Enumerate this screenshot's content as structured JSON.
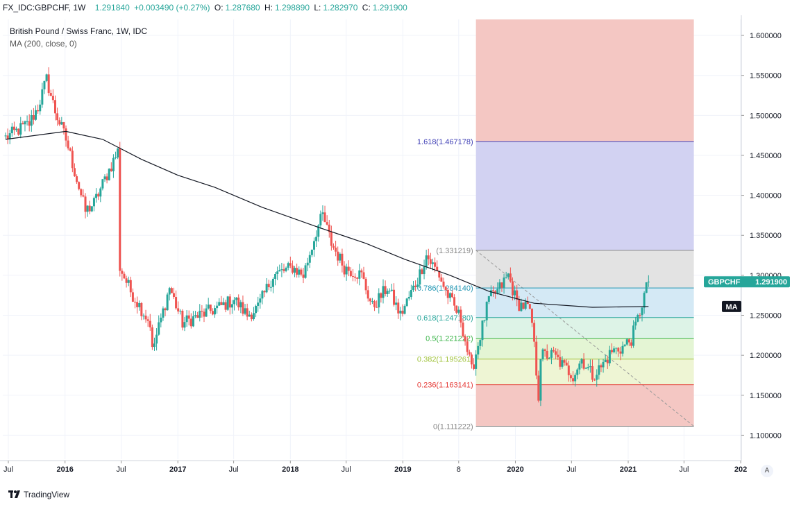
{
  "header": {
    "symbol": "FX_IDC:GBPCHF, 1W",
    "last": "1.291840",
    "change": "+0.003490 (+0.27%)",
    "o_label": "O:",
    "o_value": "1.287680",
    "h_label": "H:",
    "h_value": "1.298890",
    "l_label": "L:",
    "l_value": "1.282970",
    "c_label": "C:",
    "c_value": "1.291900"
  },
  "legend": {
    "title": "British Pound / Swiss Franc, 1W, IDC",
    "ma": "MA (200, close, 0)"
  },
  "footer": {
    "brand": "TradingView",
    "auto_label": "A"
  },
  "colors": {
    "up": "#26a69a",
    "down": "#ef5350",
    "ma": "#131722",
    "fib_top_zone": "#f4c7c3",
    "fib_1618_zone": "#d2d2f2",
    "fib_1_zone": "#e3e3e3",
    "fib_786_zone": "#d4e9f5",
    "fib_618_zone": "#ddf3e7",
    "fib_05_zone": "#e4f5d4",
    "fib_382_zone": "#eef5d4",
    "fib_0_zone": "#f4c7c3"
  },
  "chart_data": {
    "type": "candlestick",
    "title": "British Pound / Swiss Franc, 1W, IDC",
    "indicator": "MA (200, close, 0)",
    "ylim": [
      1.07,
      1.62
    ],
    "y_ticks": [
      "1.600000",
      "1.550000",
      "1.500000",
      "1.450000",
      "1.400000",
      "1.350000",
      "1.300000",
      "1.250000",
      "1.200000",
      "1.150000",
      "1.100000"
    ],
    "x_ticks": [
      "Jul",
      "2016",
      "Jul",
      "2017",
      "Jul",
      "2018",
      "Jul",
      "2019",
      "8",
      "2020",
      "Jul",
      "2021",
      "Jul",
      "202"
    ],
    "price_label": {
      "symbol": "GBPCHF",
      "value": "1.291900"
    },
    "ma_label": "MA",
    "fib_levels": [
      {
        "label": "1.618(1.467178)",
        "value": 1.467178,
        "color": "#3f3fb5"
      },
      {
        "label": "(1.331219)",
        "value": 1.331219,
        "color": "#888888"
      },
      {
        "label": "0.786(1.284140)",
        "value": 1.28414,
        "color": "#2196b3"
      },
      {
        "label": "0.618(1.247180)",
        "value": 1.24718,
        "color": "#26a69a"
      },
      {
        "label": "0.5(1.221222)",
        "value": 1.221222,
        "color": "#3cb54a"
      },
      {
        "label": "0.382(1.195261)",
        "value": 1.195261,
        "color": "#9fc23a"
      },
      {
        "label": "0.236(1.163141)",
        "value": 1.163141,
        "color": "#e53935"
      },
      {
        "label": "0(1.111222)",
        "value": 1.111222,
        "color": "#888888"
      }
    ],
    "anchors": [
      {
        "date": "2015-06-22",
        "close": 1.472
      },
      {
        "date": "2015-09-07",
        "close": 1.49
      },
      {
        "date": "2015-10-05",
        "close": 1.51
      },
      {
        "date": "2015-11-02",
        "close": 1.545
      },
      {
        "date": "2015-11-30",
        "close": 1.505
      },
      {
        "date": "2016-01-04",
        "close": 1.47
      },
      {
        "date": "2016-02-01",
        "close": 1.43
      },
      {
        "date": "2016-03-07",
        "close": 1.38
      },
      {
        "date": "2016-04-04",
        "close": 1.39
      },
      {
        "date": "2016-05-09",
        "close": 1.42
      },
      {
        "date": "2016-06-20",
        "close": 1.455
      },
      {
        "date": "2016-06-27",
        "close": 1.31
      },
      {
        "date": "2016-08-01",
        "close": 1.28
      },
      {
        "date": "2016-10-03",
        "close": 1.24
      },
      {
        "date": "2016-10-10",
        "close": 1.205
      },
      {
        "date": "2016-11-07",
        "close": 1.245
      },
      {
        "date": "2016-12-05",
        "close": 1.285
      },
      {
        "date": "2017-01-16",
        "close": 1.24
      },
      {
        "date": "2017-03-13",
        "close": 1.25
      },
      {
        "date": "2017-05-15",
        "close": 1.26
      },
      {
        "date": "2017-07-03",
        "close": 1.27
      },
      {
        "date": "2017-08-14",
        "close": 1.25
      },
      {
        "date": "2017-09-18",
        "close": 1.26
      },
      {
        "date": "2017-11-06",
        "close": 1.3
      },
      {
        "date": "2018-01-08",
        "close": 1.31
      },
      {
        "date": "2018-02-12",
        "close": 1.3
      },
      {
        "date": "2018-03-26",
        "close": 1.355
      },
      {
        "date": "2018-04-16",
        "close": 1.375
      },
      {
        "date": "2018-05-14",
        "close": 1.34
      },
      {
        "date": "2018-06-25",
        "close": 1.31
      },
      {
        "date": "2018-08-20",
        "close": 1.3
      },
      {
        "date": "2018-09-24",
        "close": 1.26
      },
      {
        "date": "2018-11-12",
        "close": 1.285
      },
      {
        "date": "2018-12-24",
        "close": 1.25
      },
      {
        "date": "2019-02-18",
        "close": 1.295
      },
      {
        "date": "2019-03-18",
        "close": 1.325
      },
      {
        "date": "2019-04-29",
        "close": 1.3
      },
      {
        "date": "2019-05-20",
        "close": 1.28
      },
      {
        "date": "2019-07-08",
        "close": 1.245
      },
      {
        "date": "2019-08-12",
        "close": 1.18
      },
      {
        "date": "2019-09-09",
        "close": 1.225
      },
      {
        "date": "2019-10-07",
        "close": 1.27
      },
      {
        "date": "2019-11-04",
        "close": 1.28
      },
      {
        "date": "2019-12-09",
        "close": 1.3
      },
      {
        "date": "2020-01-06",
        "close": 1.265
      },
      {
        "date": "2020-02-10",
        "close": 1.26
      },
      {
        "date": "2020-02-24",
        "close": 1.24
      },
      {
        "date": "2020-03-16",
        "close": 1.15
      },
      {
        "date": "2020-03-23",
        "close": 1.2
      },
      {
        "date": "2020-05-04",
        "close": 1.2
      },
      {
        "date": "2020-06-08",
        "close": 1.185
      },
      {
        "date": "2020-07-06",
        "close": 1.175
      },
      {
        "date": "2020-08-03",
        "close": 1.195
      },
      {
        "date": "2020-09-07",
        "close": 1.175
      },
      {
        "date": "2020-10-05",
        "close": 1.185
      },
      {
        "date": "2020-11-09",
        "close": 1.205
      },
      {
        "date": "2020-12-14",
        "close": 1.21
      },
      {
        "date": "2021-01-11",
        "close": 1.22
      },
      {
        "date": "2021-02-01",
        "close": 1.245
      },
      {
        "date": "2021-02-22",
        "close": 1.275
      },
      {
        "date": "2021-03-08",
        "close": 1.292
      }
    ],
    "ma_series": [
      {
        "date": "2015-06-22",
        "value": 1.47
      },
      {
        "date": "2016-01-04",
        "value": 1.48
      },
      {
        "date": "2016-05-02",
        "value": 1.47
      },
      {
        "date": "2016-09-05",
        "value": 1.445
      },
      {
        "date": "2017-01-02",
        "value": 1.425
      },
      {
        "date": "2017-05-01",
        "value": 1.41
      },
      {
        "date": "2017-10-02",
        "value": 1.385
      },
      {
        "date": "2018-04-02",
        "value": 1.36
      },
      {
        "date": "2018-09-03",
        "value": 1.34
      },
      {
        "date": "2019-01-07",
        "value": 1.32
      },
      {
        "date": "2019-06-03",
        "value": 1.3
      },
      {
        "date": "2019-10-07",
        "value": 1.28
      },
      {
        "date": "2020-03-02",
        "value": 1.265
      },
      {
        "date": "2020-09-07",
        "value": 1.26
      },
      {
        "date": "2021-03-08",
        "value": 1.261
      }
    ]
  }
}
